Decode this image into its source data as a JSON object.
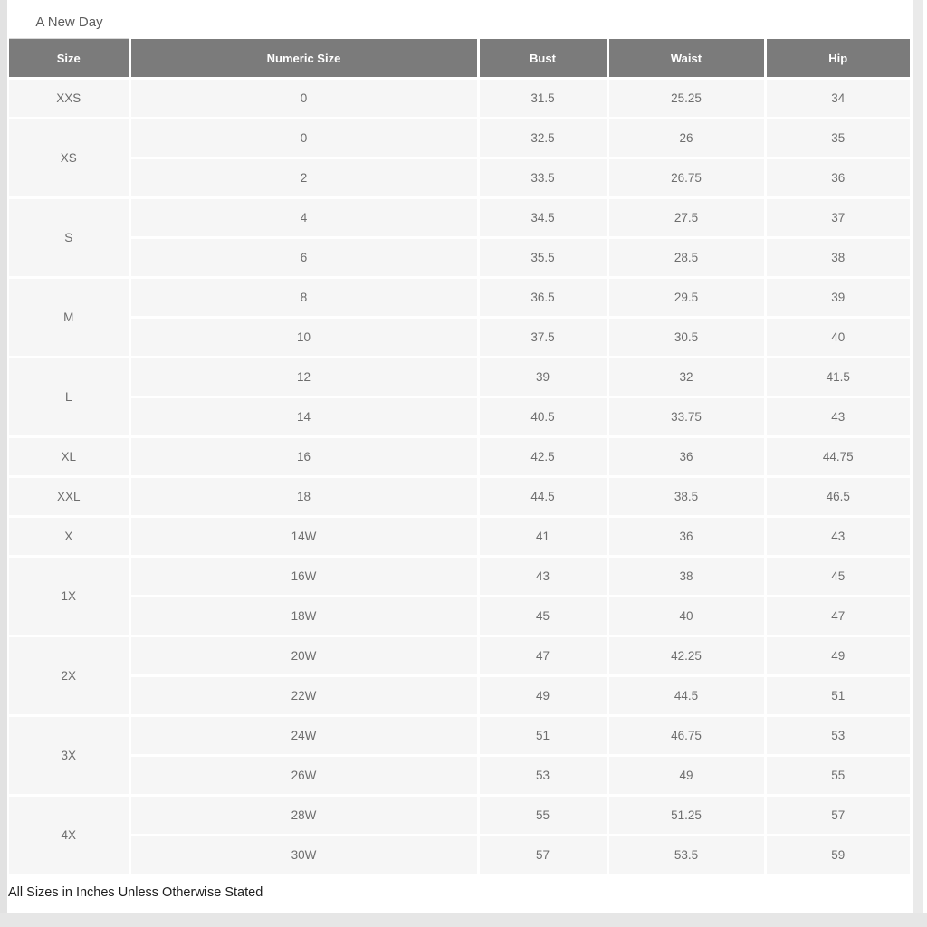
{
  "title": "A New Day",
  "table": {
    "columns": [
      "Size",
      "Numeric Size",
      "Bust",
      "Waist",
      "Hip"
    ],
    "groups": [
      {
        "size": "XXS",
        "rows": [
          [
            "0",
            "31.5",
            "25.25",
            "34"
          ]
        ]
      },
      {
        "size": "XS",
        "rows": [
          [
            "0",
            "32.5",
            "26",
            "35"
          ],
          [
            "2",
            "33.5",
            "26.75",
            "36"
          ]
        ]
      },
      {
        "size": "S",
        "rows": [
          [
            "4",
            "34.5",
            "27.5",
            "37"
          ],
          [
            "6",
            "35.5",
            "28.5",
            "38"
          ]
        ]
      },
      {
        "size": "M",
        "rows": [
          [
            "8",
            "36.5",
            "29.5",
            "39"
          ],
          [
            "10",
            "37.5",
            "30.5",
            "40"
          ]
        ]
      },
      {
        "size": "L",
        "rows": [
          [
            "12",
            "39",
            "32",
            "41.5"
          ],
          [
            "14",
            "40.5",
            "33.75",
            "43"
          ]
        ]
      },
      {
        "size": "XL",
        "rows": [
          [
            "16",
            "42.5",
            "36",
            "44.75"
          ]
        ]
      },
      {
        "size": "XXL",
        "rows": [
          [
            "18",
            "44.5",
            "38.5",
            "46.5"
          ]
        ]
      },
      {
        "size": "X",
        "rows": [
          [
            "14W",
            "41",
            "36",
            "43"
          ]
        ]
      },
      {
        "size": "1X",
        "rows": [
          [
            "16W",
            "43",
            "38",
            "45"
          ],
          [
            "18W",
            "45",
            "40",
            "47"
          ]
        ]
      },
      {
        "size": "2X",
        "rows": [
          [
            "20W",
            "47",
            "42.25",
            "49"
          ],
          [
            "22W",
            "49",
            "44.5",
            "51"
          ]
        ]
      },
      {
        "size": "3X",
        "rows": [
          [
            "24W",
            "51",
            "46.75",
            "53"
          ],
          [
            "26W",
            "53",
            "49",
            "55"
          ]
        ]
      },
      {
        "size": "4X",
        "rows": [
          [
            "28W",
            "55",
            "51.25",
            "57"
          ],
          [
            "30W",
            "57",
            "53.5",
            "59"
          ]
        ]
      }
    ]
  },
  "footer": "All Sizes in Inches Unless Otherwise Stated",
  "colors": {
    "header_bg": "#7b7b7b",
    "header_text": "#ffffff",
    "cell_bg": "#f6f6f6",
    "cell_text": "#6d6d6d",
    "page_edge": "#e2e2e2"
  }
}
